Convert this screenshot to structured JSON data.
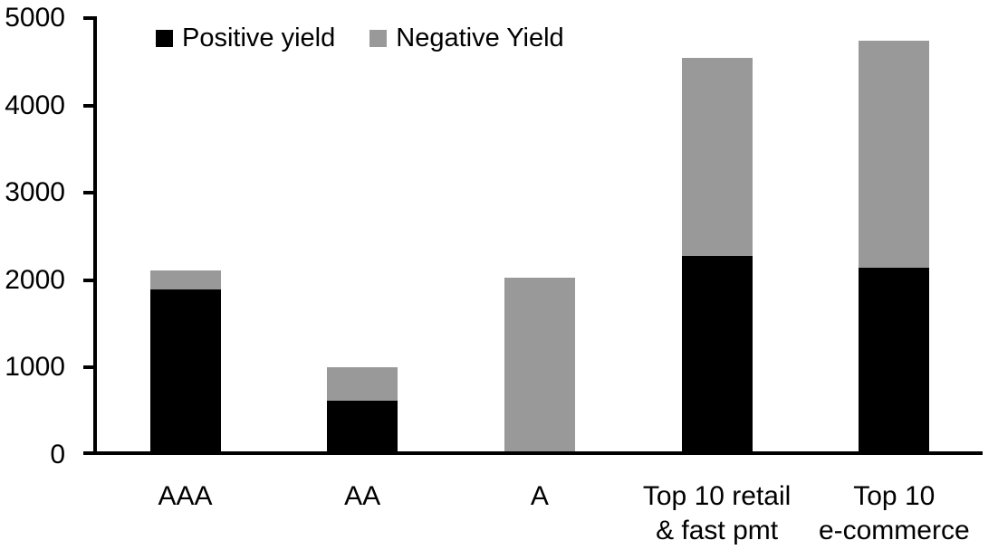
{
  "chart_data": {
    "type": "bar",
    "stacked": true,
    "title": "",
    "xlabel": "",
    "ylabel": "",
    "categories": [
      [
        "AAA"
      ],
      [
        "AA"
      ],
      [
        "A"
      ],
      [
        "Top 10 retail",
        "& fast pmt"
      ],
      [
        "Top 10",
        "e-commerce"
      ]
    ],
    "series": [
      {
        "name": "Positive yield",
        "color": "#000000",
        "values": [
          1890,
          620,
          40,
          2280,
          2140
        ]
      },
      {
        "name": "Negative Yield",
        "color": "#999999",
        "values": [
          220,
          380,
          1990,
          2270,
          2600
        ]
      }
    ],
    "ylim": [
      0,
      5000
    ],
    "yticks": [
      0,
      1000,
      2000,
      3000,
      4000,
      5000
    ],
    "legend_position": "top-left",
    "grid": false,
    "axis_color": "#000000",
    "background_color": "#ffffff",
    "text_color": "#000000"
  }
}
